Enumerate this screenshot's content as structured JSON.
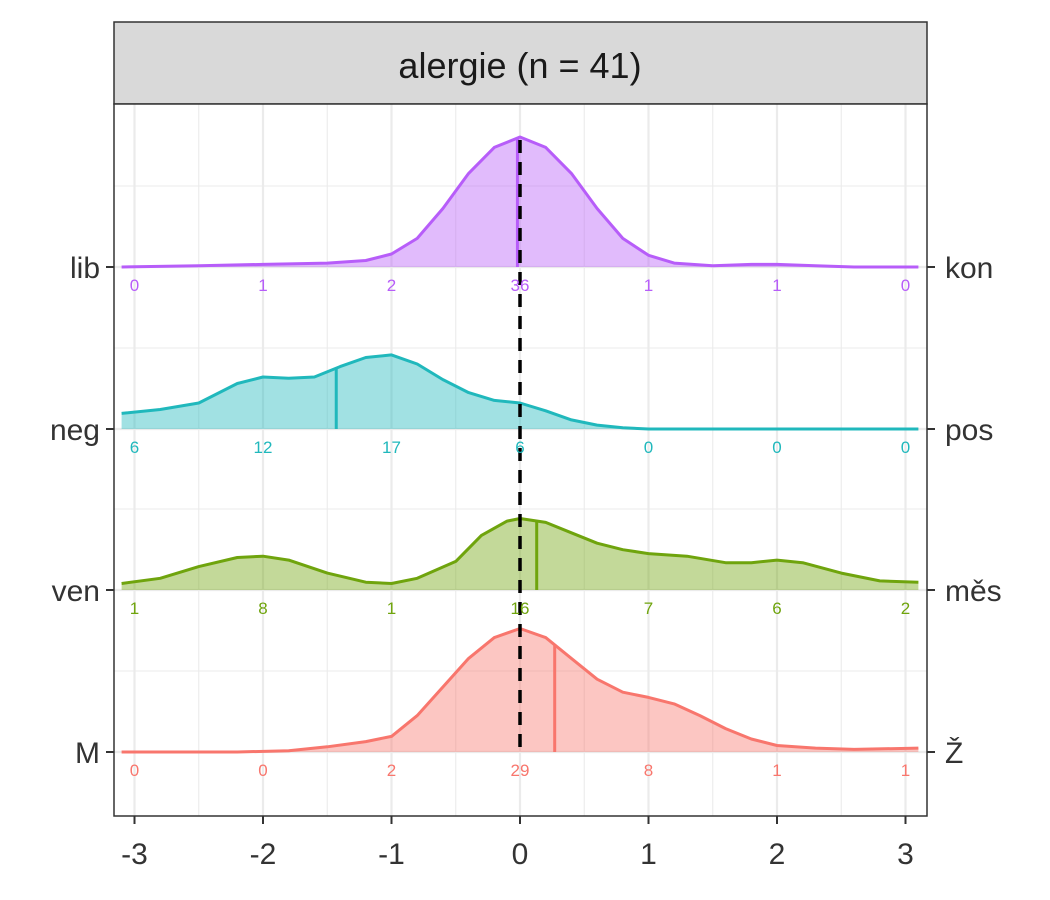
{
  "chart_data": {
    "type": "ridgeline",
    "title": "alergie (n = 41)",
    "xlim": [
      -3,
      3
    ],
    "x_ticks": [
      "-3",
      "-2",
      "-1",
      "0",
      "1",
      "2",
      "3"
    ],
    "reference_line_x": 0,
    "grid": true,
    "count_positions": [
      -3,
      -2,
      -1,
      0,
      1,
      2,
      3
    ],
    "series": [
      {
        "left_label": "lib",
        "right_label": "kon",
        "color": "#b75df9",
        "mean": -0.02,
        "counts": [
          "0",
          "1",
          "2",
          "36",
          "1",
          "1",
          "0"
        ],
        "density": [
          [
            -3.1,
            0
          ],
          [
            -2.5,
            0.01
          ],
          [
            -2,
            0.02
          ],
          [
            -1.5,
            0.03
          ],
          [
            -1.2,
            0.05
          ],
          [
            -1,
            0.1
          ],
          [
            -0.8,
            0.22
          ],
          [
            -0.6,
            0.45
          ],
          [
            -0.4,
            0.72
          ],
          [
            -0.2,
            0.92
          ],
          [
            0,
            1
          ],
          [
            0.2,
            0.92
          ],
          [
            0.4,
            0.72
          ],
          [
            0.6,
            0.45
          ],
          [
            0.8,
            0.22
          ],
          [
            1,
            0.09
          ],
          [
            1.2,
            0.03
          ],
          [
            1.5,
            0.01
          ],
          [
            1.8,
            0.02
          ],
          [
            2,
            0.02
          ],
          [
            2.3,
            0.01
          ],
          [
            2.6,
            0
          ],
          [
            3.1,
            0
          ]
        ]
      },
      {
        "left_label": "neg",
        "right_label": "pos",
        "color": "#20b8bc",
        "mean": -1.43,
        "counts": [
          "6",
          "12",
          "17",
          "6",
          "0",
          "0",
          "0"
        ],
        "density": [
          [
            -3.1,
            0.12
          ],
          [
            -2.8,
            0.15
          ],
          [
            -2.5,
            0.2
          ],
          [
            -2.2,
            0.35
          ],
          [
            -2,
            0.4
          ],
          [
            -1.8,
            0.39
          ],
          [
            -1.6,
            0.4
          ],
          [
            -1.4,
            0.48
          ],
          [
            -1.2,
            0.55
          ],
          [
            -1,
            0.57
          ],
          [
            -0.8,
            0.5
          ],
          [
            -0.6,
            0.38
          ],
          [
            -0.4,
            0.28
          ],
          [
            -0.2,
            0.22
          ],
          [
            0,
            0.2
          ],
          [
            0.2,
            0.14
          ],
          [
            0.4,
            0.07
          ],
          [
            0.6,
            0.03
          ],
          [
            0.8,
            0.01
          ],
          [
            1,
            0
          ],
          [
            3.1,
            0
          ]
        ]
      },
      {
        "left_label": "ven",
        "right_label": "měs",
        "color": "#6fa40d",
        "mean": 0.13,
        "counts": [
          "1",
          "8",
          "1",
          "16",
          "7",
          "6",
          "2"
        ],
        "density": [
          [
            -3.1,
            0.05
          ],
          [
            -2.8,
            0.09
          ],
          [
            -2.5,
            0.18
          ],
          [
            -2.2,
            0.25
          ],
          [
            -2,
            0.26
          ],
          [
            -1.8,
            0.23
          ],
          [
            -1.5,
            0.13
          ],
          [
            -1.2,
            0.06
          ],
          [
            -1,
            0.05
          ],
          [
            -0.8,
            0.09
          ],
          [
            -0.5,
            0.22
          ],
          [
            -0.3,
            0.42
          ],
          [
            -0.1,
            0.53
          ],
          [
            0,
            0.55
          ],
          [
            0.2,
            0.52
          ],
          [
            0.4,
            0.44
          ],
          [
            0.6,
            0.36
          ],
          [
            0.8,
            0.31
          ],
          [
            1,
            0.28
          ],
          [
            1.3,
            0.26
          ],
          [
            1.6,
            0.21
          ],
          [
            1.8,
            0.21
          ],
          [
            2,
            0.23
          ],
          [
            2.2,
            0.21
          ],
          [
            2.5,
            0.13
          ],
          [
            2.8,
            0.07
          ],
          [
            3.1,
            0.06
          ]
        ]
      },
      {
        "left_label": "M",
        "right_label": "Ž",
        "color": "#f8766d",
        "mean": 0.27,
        "counts": [
          "0",
          "0",
          "2",
          "29",
          "8",
          "1",
          "1"
        ],
        "density": [
          [
            -3.1,
            0
          ],
          [
            -2.2,
            0
          ],
          [
            -1.8,
            0.01
          ],
          [
            -1.5,
            0.04
          ],
          [
            -1.2,
            0.08
          ],
          [
            -1,
            0.12
          ],
          [
            -0.8,
            0.28
          ],
          [
            -0.6,
            0.5
          ],
          [
            -0.4,
            0.72
          ],
          [
            -0.2,
            0.88
          ],
          [
            0,
            0.95
          ],
          [
            0.2,
            0.88
          ],
          [
            0.4,
            0.72
          ],
          [
            0.6,
            0.56
          ],
          [
            0.8,
            0.46
          ],
          [
            1,
            0.42
          ],
          [
            1.2,
            0.37
          ],
          [
            1.4,
            0.28
          ],
          [
            1.6,
            0.18
          ],
          [
            1.8,
            0.1
          ],
          [
            2,
            0.05
          ],
          [
            2.3,
            0.03
          ],
          [
            2.6,
            0.02
          ],
          [
            3.1,
            0.03
          ]
        ]
      }
    ]
  }
}
